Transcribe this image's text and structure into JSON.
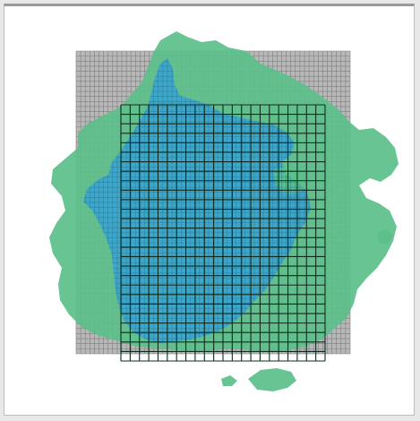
{
  "map": {
    "colors": {
      "region": "#5cbf8a",
      "water": "#3ea6c8",
      "fine_grid_line": "#7d7d7d",
      "fine_grid_bg": "#b8b8b8",
      "coarse_grid_line": "#0f2b1e"
    },
    "fine_grid_divisions": 60,
    "coarse_grid_columns": 22,
    "coarse_grid_rows": 27
  }
}
